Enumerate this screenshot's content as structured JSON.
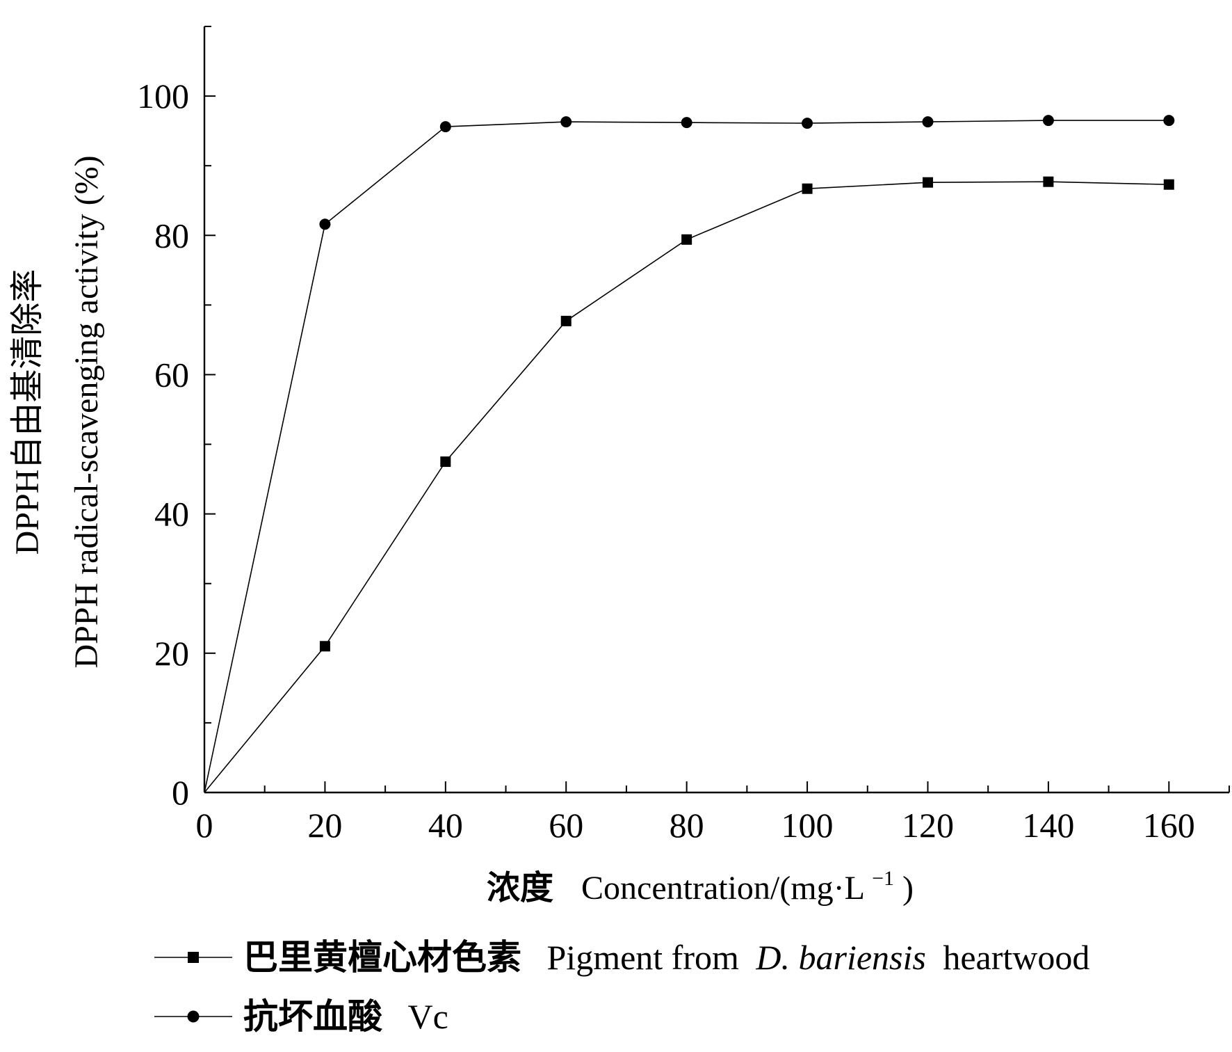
{
  "chart_data": {
    "type": "line",
    "x": [
      0,
      20,
      40,
      60,
      80,
      100,
      120,
      140,
      160
    ],
    "series": [
      {
        "legend_cn": "巴里黄檀心材色素",
        "legend_en_prefix": "Pigment from",
        "legend_en_italic": "D. bariensis",
        "legend_en_suffix": "heartwood",
        "marker": "square",
        "values": [
          0,
          21,
          47.5,
          67.7,
          79.4,
          86.7,
          87.6,
          87.7,
          87.3
        ]
      },
      {
        "legend_cn": "抗坏血酸",
        "legend_en": "Vc",
        "marker": "circle",
        "values": [
          0,
          81.6,
          95.6,
          96.3,
          96.2,
          96.1,
          96.3,
          96.5,
          96.5
        ]
      }
    ],
    "xlabel_cn": "浓度",
    "xlabel_en": "Concentration/(mg·L",
    "xlabel_sup": "−1",
    "xlabel_close": ")",
    "ylabel_line1": "DPPH自由基清除率",
    "ylabel_line2": "DPPH radical-scavenging activity (%)",
    "xlim": [
      0,
      170
    ],
    "ylim": [
      0,
      110
    ],
    "xticks": [
      0,
      20,
      40,
      60,
      80,
      100,
      120,
      140,
      160
    ],
    "yticks": [
      0,
      20,
      40,
      60,
      80,
      100
    ],
    "grid": false,
    "legend_position": "bottom"
  }
}
